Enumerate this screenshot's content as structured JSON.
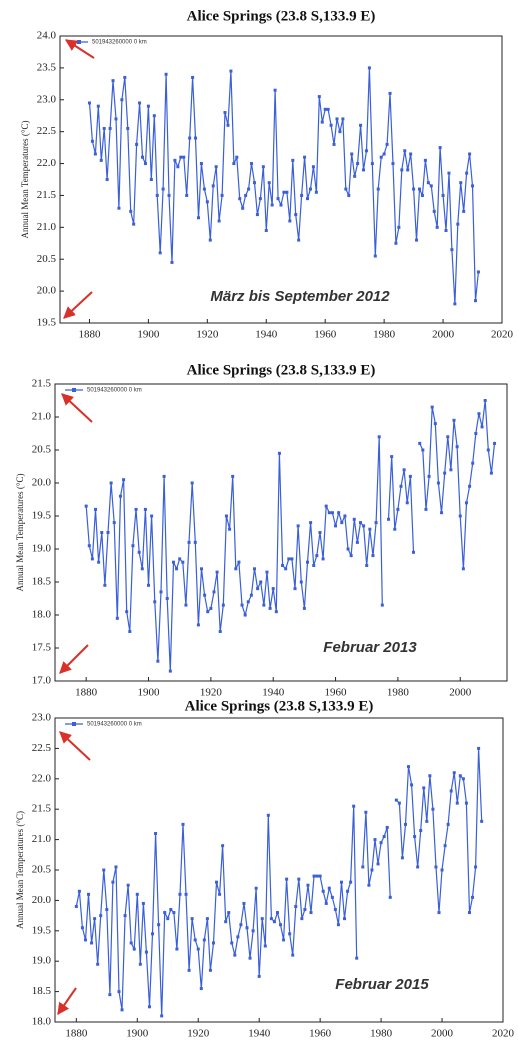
{
  "chart_data": [
    {
      "type": "line",
      "title": "Alice Springs (23.8 S,133.9 E)",
      "ylabel": "Annual Mean Temperatures (°C)",
      "annotation": "März bis September 2012",
      "xlim": [
        1870,
        2020
      ],
      "xticks": [
        1880,
        1900,
        1920,
        1940,
        1960,
        1980,
        2000,
        2020
      ],
      "ylim": [
        19.5,
        24.0
      ],
      "yticks": [
        19.5,
        {
          "value": 20,
          "label": "20.0"
        },
        20.5,
        {
          "value": 21,
          "label": "21.0"
        },
        21.5,
        {
          "value": 22,
          "label": "22.0"
        },
        22.5,
        {
          "value": 23,
          "label": "23.0"
        },
        23.5,
        {
          "value": 24,
          "label": "24.0"
        }
      ],
      "x": [
        1880,
        1881,
        1882,
        1883,
        1884,
        1885,
        1886,
        1887,
        1888,
        1889,
        1890,
        1891,
        1892,
        1893,
        1894,
        1895,
        1896,
        1897,
        1898,
        1899,
        1900,
        1901,
        1902,
        1903,
        1904,
        1905,
        1906,
        1907,
        1908,
        1909,
        1910,
        1911,
        1912,
        1913,
        1914,
        1915,
        1916,
        1917,
        1918,
        1919,
        1920,
        1921,
        1922,
        1923,
        1924,
        1925,
        1926,
        1927,
        1928,
        1929,
        1930,
        1931,
        1932,
        1933,
        1934,
        1935,
        1936,
        1937,
        1938,
        1939,
        1940,
        1941,
        1942,
        1943,
        1944,
        1945,
        1946,
        1947,
        1948,
        1949,
        1950,
        1951,
        1952,
        1953,
        1954,
        1955,
        1956,
        1957,
        1958,
        1959,
        1960,
        1961,
        1962,
        1963,
        1964,
        1965,
        1966,
        1967,
        1968,
        1969,
        1970,
        1971,
        1972,
        1973,
        1974,
        1975,
        1976,
        1977,
        1978,
        1979,
        1980,
        1981,
        1982,
        1983,
        1984,
        1985,
        1986,
        1987,
        1988,
        1989,
        1990,
        1991,
        1992,
        1993,
        1994,
        1995,
        1996,
        1997,
        1998,
        1999,
        2000,
        2001,
        2002,
        2003,
        2004,
        2005,
        2006,
        2007,
        2008,
        2009,
        2010,
        2011,
        2012
      ],
      "series": [
        {
          "name": "501943260000 0 km",
          "color": "#3a5fd8",
          "values": [
            22.95,
            22.35,
            22.15,
            22.9,
            22.05,
            22.55,
            21.75,
            22.55,
            23.3,
            22.7,
            21.3,
            23.0,
            23.35,
            22.55,
            21.25,
            21.05,
            22.3,
            22.95,
            22.1,
            22.0,
            22.9,
            21.75,
            22.75,
            21.5,
            20.6,
            21.6,
            23.4,
            21.5,
            20.45,
            22.05,
            21.95,
            22.1,
            22.1,
            21.5,
            22.4,
            23.35,
            22.4,
            21.15,
            22.0,
            21.6,
            21.4,
            20.8,
            21.65,
            21.95,
            21.1,
            21.5,
            22.8,
            22.6,
            23.45,
            22.0,
            22.1,
            21.45,
            21.3,
            21.5,
            21.6,
            22.0,
            21.7,
            21.2,
            21.45,
            21.95,
            20.95,
            21.7,
            21.35,
            23.15,
            21.45,
            21.35,
            21.55,
            21.55,
            21.1,
            22.05,
            21.2,
            20.8,
            21.5,
            22.1,
            21.45,
            21.6,
            21.95,
            21.55,
            23.05,
            22.65,
            22.85,
            22.85,
            22.6,
            22.3,
            22.7,
            22.5,
            22.7,
            21.6,
            21.5,
            22.15,
            21.8,
            22.0,
            22.6,
            21.9,
            22.2,
            23.5,
            22.0,
            20.55,
            21.6,
            22.1,
            22.15,
            22.3,
            23.1,
            22.0,
            20.75,
            21.0,
            21.9,
            22.2,
            21.9,
            22.15,
            21.6,
            20.8,
            21.6,
            21.5,
            22.05,
            21.7,
            21.65,
            21.25,
            21.0,
            22.25,
            21.5,
            20.95,
            21.85,
            20.65,
            19.8,
            21.05,
            21.7,
            21.25,
            21.85,
            22.15,
            21.65,
            19.85,
            20.3
          ]
        }
      ]
    },
    {
      "type": "line",
      "title": "Alice Springs (23.8 S,133.9 E)",
      "ylabel": "Annual Mean Temperatures (°C)",
      "annotation": "Februar 2013",
      "xlim": [
        1870,
        2015
      ],
      "xticks": [
        1880,
        1900,
        1920,
        1940,
        1960,
        1980,
        2000
      ],
      "ylim": [
        17.0,
        21.5
      ],
      "yticks": [
        {
          "value": 17,
          "label": "17.0"
        },
        17.5,
        {
          "value": 18,
          "label": "18.0"
        },
        18.5,
        {
          "value": 19,
          "label": "19.0"
        },
        19.5,
        {
          "value": 20,
          "label": "20.0"
        },
        20.5,
        {
          "value": 21,
          "label": "21.0"
        },
        21.5
      ],
      "x": [
        1880,
        1881,
        1882,
        1883,
        1884,
        1885,
        1886,
        1887,
        1888,
        1889,
        1890,
        1891,
        1892,
        1893,
        1894,
        1895,
        1896,
        1897,
        1898,
        1899,
        1900,
        1901,
        1902,
        1903,
        1904,
        1905,
        1906,
        1907,
        1908,
        1909,
        1910,
        1911,
        1912,
        1913,
        1914,
        1915,
        1916,
        1917,
        1918,
        1919,
        1920,
        1921,
        1922,
        1923,
        1924,
        1925,
        1926,
        1927,
        1928,
        1929,
        1930,
        1931,
        1932,
        1933,
        1934,
        1935,
        1936,
        1937,
        1938,
        1939,
        1940,
        1941,
        1942,
        1943,
        1944,
        1945,
        1946,
        1947,
        1948,
        1949,
        1950,
        1951,
        1952,
        1953,
        1954,
        1955,
        1956,
        1957,
        1958,
        1959,
        1960,
        1961,
        1962,
        1963,
        1964,
        1965,
        1966,
        1967,
        1968,
        1969,
        1970,
        1971,
        1972,
        1973,
        1974,
        1975,
        1976,
        1977,
        1978,
        1979,
        1980,
        1981,
        1982,
        1983,
        1984,
        1985,
        1986,
        1987,
        1988,
        1989,
        1990,
        1991,
        1992,
        1993,
        1994,
        1995,
        1996,
        1997,
        1998,
        1999,
        2000,
        2001,
        2002,
        2003,
        2004,
        2005,
        2006,
        2007,
        2008,
        2009,
        2010,
        2011
      ],
      "series": [
        {
          "name": "501943260000 0 km",
          "color": "#3a5fd8",
          "values": [
            19.65,
            19.05,
            18.85,
            19.6,
            18.8,
            19.25,
            18.45,
            19.25,
            20.0,
            19.4,
            17.95,
            19.8,
            20.05,
            18.05,
            17.75,
            19.05,
            19.6,
            18.95,
            18.7,
            19.6,
            18.45,
            19.5,
            18.2,
            17.3,
            18.35,
            20.1,
            18.25,
            17.15,
            18.8,
            18.7,
            18.85,
            18.8,
            18.15,
            19.1,
            20.0,
            19.1,
            17.85,
            18.7,
            18.3,
            18.05,
            18.1,
            18.35,
            18.65,
            17.75,
            18.15,
            19.5,
            19.3,
            20.1,
            18.7,
            18.8,
            18.15,
            18.0,
            18.2,
            18.3,
            18.7,
            18.4,
            18.5,
            18.15,
            18.65,
            18.1,
            18.4,
            18.05,
            20.45,
            18.75,
            18.7,
            18.85,
            18.85,
            18.4,
            19.35,
            18.5,
            18.1,
            18.8,
            19.4,
            18.75,
            18.9,
            19.25,
            18.85,
            19.65,
            19.55,
            19.55,
            19.35,
            19.55,
            19.4,
            19.5,
            19.0,
            18.9,
            19.45,
            19.1,
            19.4,
            19.35,
            18.75,
            19.3,
            18.9,
            19.4,
            20.7,
            18.15,
            null,
            19.45,
            20.4,
            19.3,
            19.6,
            19.95,
            20.2,
            19.7,
            20.1,
            18.95,
            null,
            20.6,
            20.5,
            19.6,
            20.1,
            21.15,
            20.9,
            20.0,
            19.55,
            20.15,
            20.7,
            20.2,
            20.95,
            20.55,
            19.5,
            18.7,
            19.7,
            19.95,
            20.3,
            20.75,
            21.05,
            20.85,
            21.25,
            20.5,
            20.15,
            20.6
          ]
        }
      ]
    },
    {
      "type": "line",
      "title": "Alice Springs (23.8 S,133.9 E)",
      "ylabel": "Annual Mean Temperatures (°C)",
      "annotation": "Februar 2015",
      "xlim": [
        1873,
        2020
      ],
      "xticks": [
        1880,
        1900,
        1920,
        1940,
        1960,
        1980,
        2000,
        2020
      ],
      "ylim": [
        18.0,
        23.0
      ],
      "yticks": [
        {
          "value": 18,
          "label": "18.0"
        },
        18.5,
        {
          "value": 19,
          "label": "19.0"
        },
        19.5,
        {
          "value": 20,
          "label": "20.0"
        },
        20.5,
        {
          "value": 21,
          "label": "21.0"
        },
        21.5,
        {
          "value": 22,
          "label": "22.0"
        },
        22.5,
        {
          "value": 23,
          "label": "23.0"
        }
      ],
      "x": [
        1880,
        1881,
        1882,
        1883,
        1884,
        1885,
        1886,
        1887,
        1888,
        1889,
        1890,
        1891,
        1892,
        1893,
        1894,
        1895,
        1896,
        1897,
        1898,
        1899,
        1900,
        1901,
        1902,
        1903,
        1904,
        1905,
        1906,
        1907,
        1908,
        1909,
        1910,
        1911,
        1912,
        1913,
        1914,
        1915,
        1916,
        1917,
        1918,
        1919,
        1920,
        1921,
        1922,
        1923,
        1924,
        1925,
        1926,
        1927,
        1928,
        1929,
        1930,
        1931,
        1932,
        1933,
        1934,
        1935,
        1936,
        1937,
        1938,
        1939,
        1940,
        1941,
        1942,
        1943,
        1944,
        1945,
        1946,
        1947,
        1948,
        1949,
        1950,
        1951,
        1952,
        1953,
        1954,
        1955,
        1956,
        1957,
        1958,
        1959,
        1960,
        1961,
        1962,
        1963,
        1964,
        1965,
        1966,
        1967,
        1968,
        1969,
        1970,
        1971,
        1972,
        1973,
        1974,
        1975,
        1976,
        1977,
        1978,
        1979,
        1980,
        1981,
        1982,
        1983,
        1984,
        1985,
        1986,
        1987,
        1988,
        1989,
        1990,
        1991,
        1992,
        1993,
        1994,
        1995,
        1996,
        1997,
        1998,
        1999,
        2000,
        2001,
        2002,
        2003,
        2004,
        2005,
        2006,
        2007,
        2008,
        2009,
        2010,
        2011,
        2012,
        2013
      ],
      "series": [
        {
          "name": "501943260000 0 km",
          "color": "#3a5fd8",
          "values": [
            19.9,
            20.15,
            19.55,
            19.35,
            20.1,
            19.3,
            19.7,
            18.95,
            19.75,
            20.5,
            19.85,
            18.45,
            20.3,
            20.55,
            18.5,
            18.2,
            19.75,
            20.25,
            19.3,
            19.2,
            20.1,
            18.95,
            19.95,
            19.15,
            18.25,
            19.45,
            21.1,
            19.6,
            18.1,
            19.8,
            19.7,
            19.85,
            19.8,
            19.2,
            20.1,
            21.25,
            20.1,
            18.85,
            19.7,
            19.35,
            19.2,
            18.55,
            19.35,
            19.7,
            18.85,
            19.3,
            20.3,
            20.1,
            20.9,
            19.65,
            19.8,
            19.3,
            19.1,
            19.4,
            19.6,
            19.95,
            19.55,
            19.05,
            19.5,
            20.2,
            18.75,
            19.7,
            19.25,
            21.4,
            19.7,
            19.65,
            19.8,
            19.6,
            19.35,
            20.35,
            19.45,
            19.1,
            19.9,
            20.35,
            19.7,
            19.85,
            20.25,
            19.8,
            20.4,
            20.4,
            20.4,
            20.15,
            19.95,
            20.2,
            20.05,
            19.85,
            19.6,
            20.3,
            19.7,
            20.15,
            20.3,
            21.55,
            19.05,
            null,
            20.55,
            21.45,
            20.25,
            20.5,
            21.0,
            20.6,
            20.95,
            21.05,
            21.2,
            20.05,
            null,
            21.65,
            21.6,
            20.7,
            21.25,
            22.2,
            21.9,
            21.05,
            20.55,
            21.15,
            21.85,
            21.3,
            22.05,
            21.5,
            20.55,
            19.8,
            20.5,
            20.9,
            21.25,
            21.8,
            22.1,
            21.6,
            22.05,
            22.0,
            21.6,
            19.8,
            20.05,
            20.55,
            22.5,
            21.3
          ]
        }
      ]
    }
  ]
}
